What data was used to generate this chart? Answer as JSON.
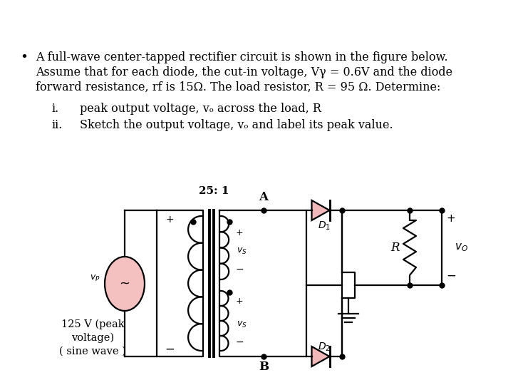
{
  "bg_color": "#ffffff",
  "fig_width": 7.2,
  "fig_height": 5.4,
  "dpi": 100,
  "text_line1": "A full-wave center-tapped rectifier circuit is shown in the figure below.",
  "text_line2": "Assume that for each diode, the cut-in voltage, Vγ = 0.6V and the diode",
  "text_line3": "forward resistance, rf is 15Ω. The load resistor, R = 95 Ω. Determine:",
  "item_i": "peak output voltage, vₒ across the load, R",
  "item_ii": "Sketch the output voltage, vₒ and label its peak value.",
  "diode_color": "#f0b8b8",
  "source_fill": "#f4c0c0"
}
